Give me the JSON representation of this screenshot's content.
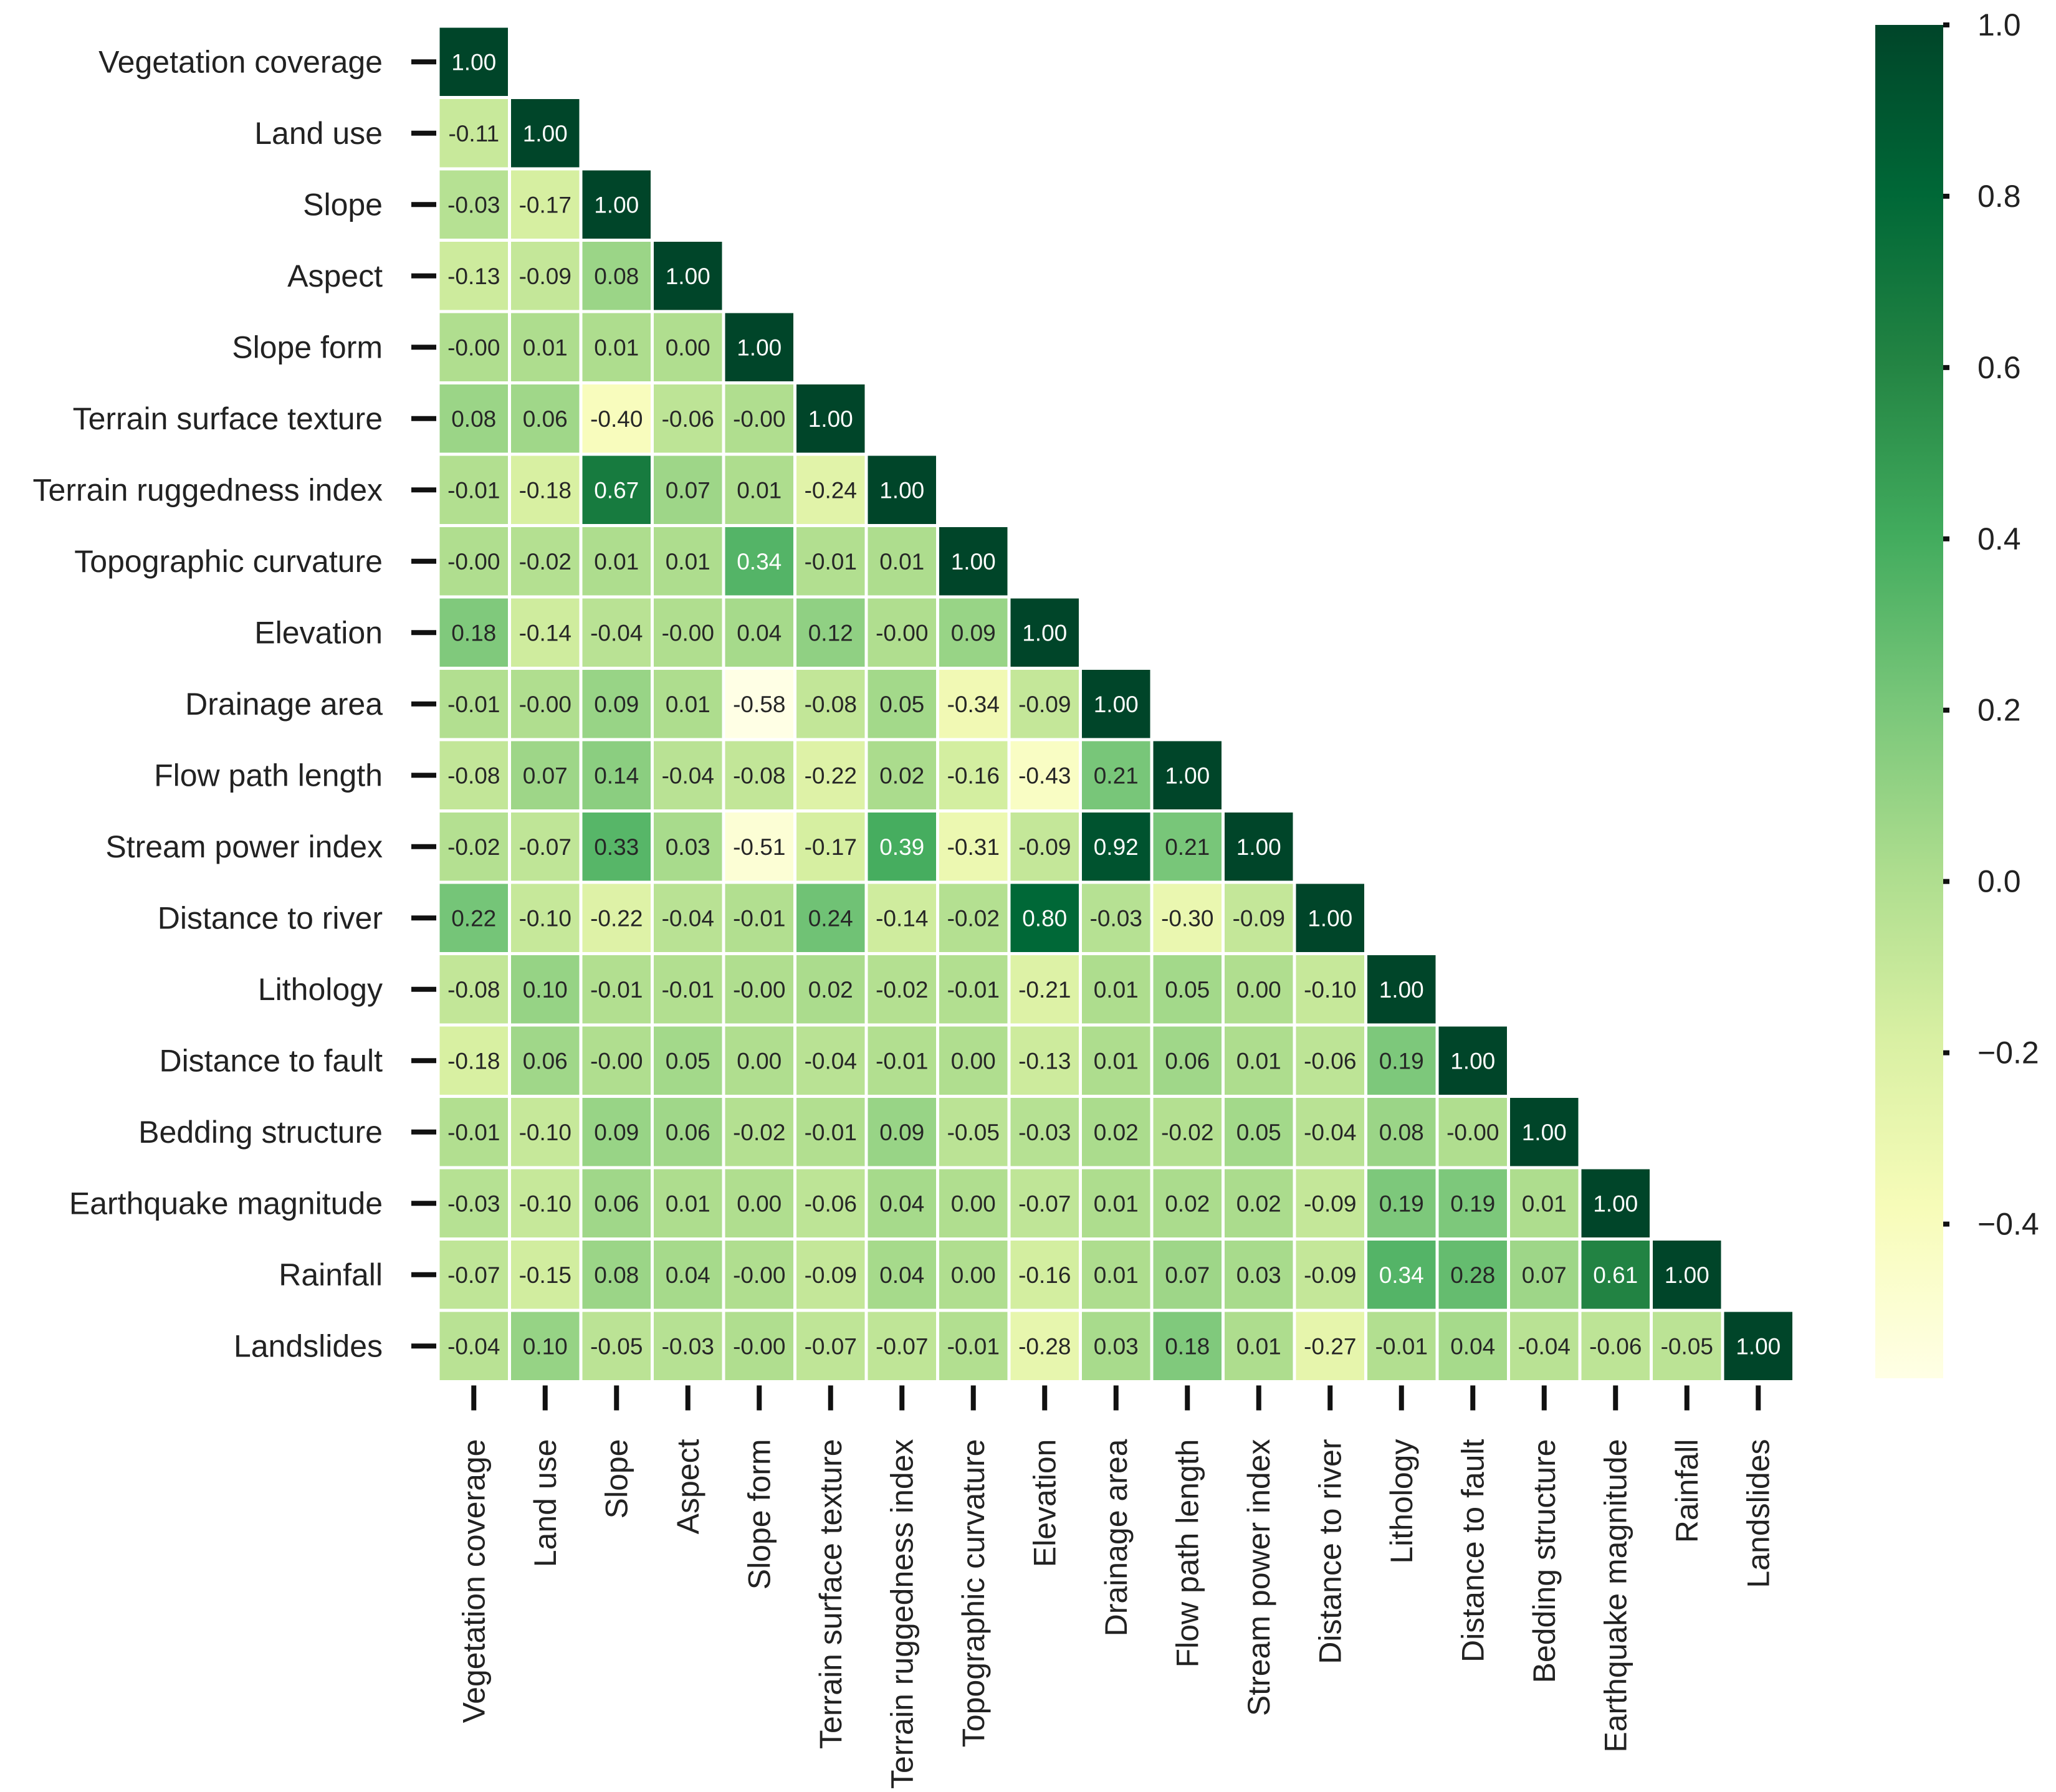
{
  "chart_data": {
    "type": "heatmap",
    "variables": [
      "Vegetation coverage",
      "Land use",
      "Slope",
      "Aspect",
      "Slope form",
      "Terrain surface texture",
      "Terrain ruggedness index",
      "Topographic curvature",
      "Elevation",
      "Drainage area",
      "Flow path length",
      "Stream power index",
      "Distance to river",
      "Lithology",
      "Distance to fault",
      "Bedding structure",
      "Earthquake magnitude",
      "Rainfall",
      "Landslides"
    ],
    "values": [
      [
        "1.00"
      ],
      [
        "-0.11",
        "1.00"
      ],
      [
        "-0.03",
        "-0.17",
        "1.00"
      ],
      [
        "-0.13",
        "-0.09",
        "0.08",
        "1.00"
      ],
      [
        "-0.00",
        "0.01",
        "0.01",
        "0.00",
        "1.00"
      ],
      [
        "0.08",
        "0.06",
        "-0.40",
        "-0.06",
        "-0.00",
        "1.00"
      ],
      [
        "-0.01",
        "-0.18",
        "0.67",
        "0.07",
        "0.01",
        "-0.24",
        "1.00"
      ],
      [
        "-0.00",
        "-0.02",
        "0.01",
        "0.01",
        "0.34",
        "-0.01",
        "0.01",
        "1.00"
      ],
      [
        "0.18",
        "-0.14",
        "-0.04",
        "-0.00",
        "0.04",
        "0.12",
        "-0.00",
        "0.09",
        "1.00"
      ],
      [
        "-0.01",
        "-0.00",
        "0.09",
        "0.01",
        "-0.58",
        "-0.08",
        "0.05",
        "-0.34",
        "-0.09",
        "1.00"
      ],
      [
        "-0.08",
        "0.07",
        "0.14",
        "-0.04",
        "-0.08",
        "-0.22",
        "0.02",
        "-0.16",
        "-0.43",
        "0.21",
        "1.00"
      ],
      [
        "-0.02",
        "-0.07",
        "0.33",
        "0.03",
        "-0.51",
        "-0.17",
        "0.39",
        "-0.31",
        "-0.09",
        "0.92",
        "0.21",
        "1.00"
      ],
      [
        "0.22",
        "-0.10",
        "-0.22",
        "-0.04",
        "-0.01",
        "0.24",
        "-0.14",
        "-0.02",
        "0.80",
        "-0.03",
        "-0.30",
        "-0.09",
        "1.00"
      ],
      [
        "-0.08",
        "0.10",
        "-0.01",
        "-0.01",
        "-0.00",
        "0.02",
        "-0.02",
        "-0.01",
        "-0.21",
        "0.01",
        "0.05",
        "0.00",
        "-0.10",
        "1.00"
      ],
      [
        "-0.18",
        "0.06",
        "-0.00",
        "0.05",
        "0.00",
        "-0.04",
        "-0.01",
        "0.00",
        "-0.13",
        "0.01",
        "0.06",
        "0.01",
        "-0.06",
        "0.19",
        "1.00"
      ],
      [
        "-0.01",
        "-0.10",
        "0.09",
        "0.06",
        "-0.02",
        "-0.01",
        "0.09",
        "-0.05",
        "-0.03",
        "0.02",
        "-0.02",
        "0.05",
        "-0.04",
        "0.08",
        "-0.00",
        "1.00"
      ],
      [
        "-0.03",
        "-0.10",
        "0.06",
        "0.01",
        "0.00",
        "-0.06",
        "0.04",
        "0.00",
        "-0.07",
        "0.01",
        "0.02",
        "0.02",
        "-0.09",
        "0.19",
        "0.19",
        "0.01",
        "1.00"
      ],
      [
        "-0.07",
        "-0.15",
        "0.08",
        "0.04",
        "-0.00",
        "-0.09",
        "0.04",
        "0.00",
        "-0.16",
        "0.01",
        "0.07",
        "0.03",
        "-0.09",
        "0.34",
        "0.28",
        "0.07",
        "0.61",
        "1.00"
      ],
      [
        "-0.04",
        "0.10",
        "-0.05",
        "-0.03",
        "-0.00",
        "-0.07",
        "-0.07",
        "-0.01",
        "-0.28",
        "0.03",
        "0.18",
        "0.01",
        "-0.27",
        "-0.01",
        "0.04",
        "-0.04",
        "-0.06",
        "-0.05",
        "1.00"
      ]
    ],
    "colorbar": {
      "min": -0.58,
      "max": 1.0,
      "ticks": [
        1.0,
        0.8,
        0.6,
        0.4,
        0.2,
        0.0,
        -0.2,
        -0.4
      ],
      "tick_labels": [
        "1.0",
        "0.8",
        "0.6",
        "0.4",
        "0.2",
        "0.0",
        "−0.2",
        "−0.4"
      ],
      "colormap": "YlGn"
    },
    "grid": false,
    "mask": "upper-triangle"
  }
}
